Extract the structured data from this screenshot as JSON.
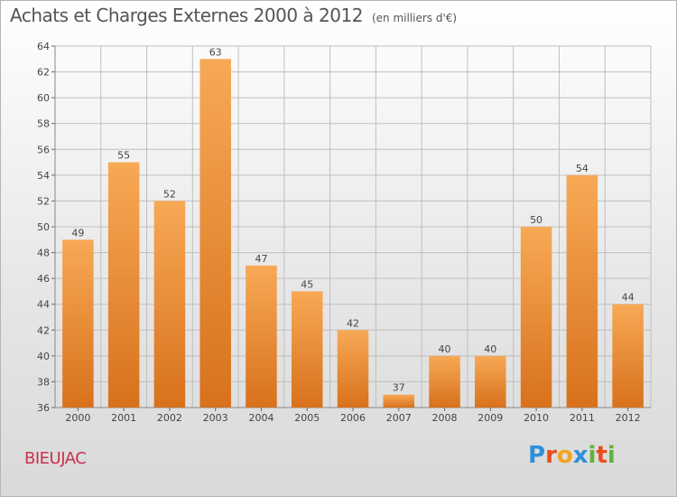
{
  "title": "Achats et Charges Externes 2000 à 2012",
  "subtitle": "(en milliers d'€)",
  "commune": "BIEUJAC",
  "logo": {
    "text": "Proxiti",
    "letters": [
      "P",
      "r",
      "o",
      "x",
      "i",
      "t",
      "i"
    ],
    "colors": [
      "#2f8fd8",
      "#e84e1b",
      "#f4a21d",
      "#2f8fd8",
      "#63b33a",
      "#e84e1b",
      "#63b33a"
    ]
  },
  "colors": {
    "bar_top": "#f7a955",
    "bar_bottom": "#d8711c",
    "grid": "#bfbfbf",
    "axis_text": "#444444"
  },
  "chart_data": {
    "type": "bar",
    "title": "Achats et Charges Externes 2000 à 2012",
    "subtitle": "(en milliers d'€)",
    "categories": [
      "2000",
      "2001",
      "2002",
      "2003",
      "2004",
      "2005",
      "2006",
      "2007",
      "2008",
      "2009",
      "2010",
      "2011",
      "2012"
    ],
    "values": [
      49,
      55,
      52,
      63,
      47,
      45,
      42,
      37,
      40,
      40,
      50,
      54,
      44
    ],
    "ylim": [
      36,
      64
    ],
    "yticks": [
      36,
      38,
      40,
      42,
      44,
      46,
      48,
      50,
      52,
      54,
      56,
      58,
      60,
      62,
      64
    ],
    "grid": true,
    "legend": "none"
  }
}
